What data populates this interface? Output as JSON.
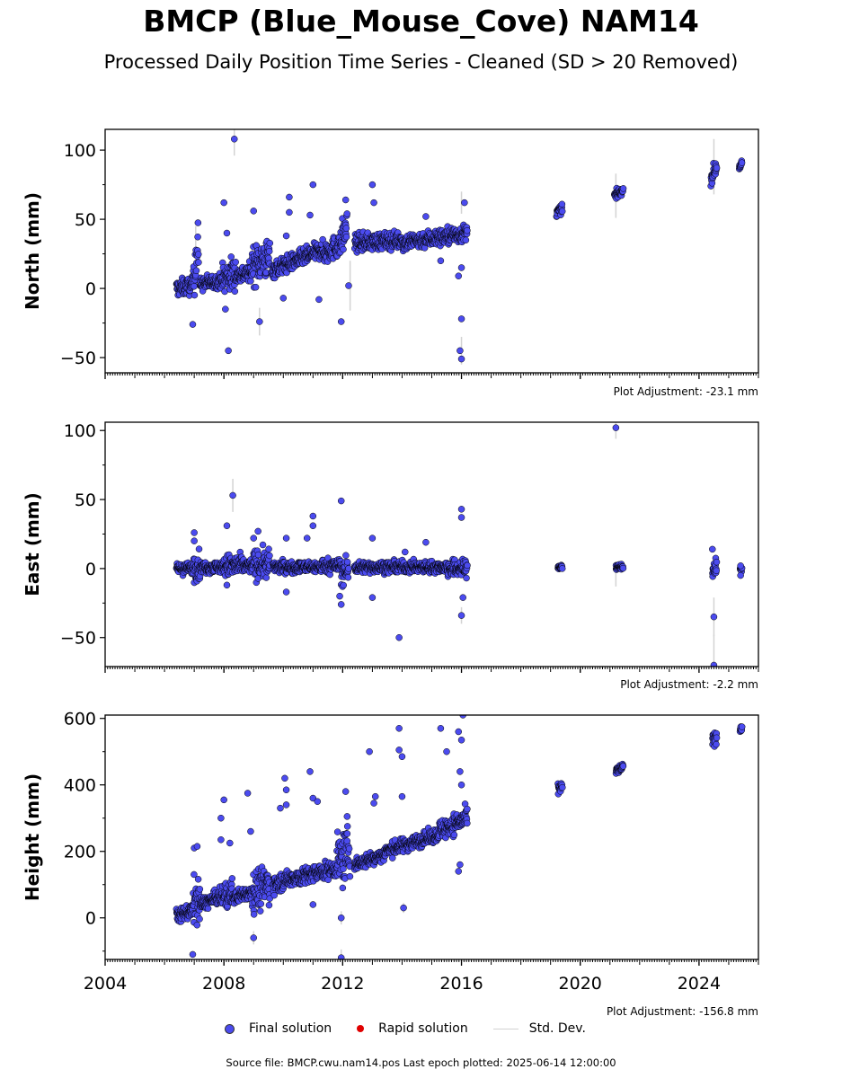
{
  "title": "BMCP (Blue_Mouse_Cove) NAM14",
  "subtitle": "Processed Daily Position Time Series - Cleaned (SD > 20 Removed)",
  "source_note": "Source file: BMCP.cwu.nam14.pos  Last epoch plotted: 2025-06-14 12:00:00",
  "legend": {
    "final": "Final solution",
    "rapid": "Rapid solution",
    "std": "Std. Dev."
  },
  "colors": {
    "final": "#4b4bef",
    "rapid": "#e00000",
    "std": "#d3d3d3",
    "edge": "#000000"
  },
  "chart_data": [
    {
      "type": "scatter",
      "ylabel": "North (mm)",
      "adjustment": "Plot Adjustment: -23.1 mm",
      "xlim": [
        2004,
        2026
      ],
      "ylim": [
        -61,
        115
      ],
      "yticks": [
        -50,
        0,
        50,
        100
      ],
      "ytick_labels": [
        "−50",
        "0",
        "50",
        "100"
      ],
      "xticks": [
        2004,
        2008,
        2012,
        2016,
        2020,
        2024
      ],
      "xtick_labels": [],
      "segments": [
        {
          "x0": 2006.4,
          "x1": 2006.95,
          "y0": 0,
          "y1": 2,
          "spread": 6
        },
        {
          "x0": 2006.95,
          "x1": 2007.15,
          "y0": 10,
          "y1": 30,
          "spread": 18
        },
        {
          "x0": 2007.2,
          "x1": 2007.95,
          "y0": 3,
          "y1": 6,
          "spread": 5
        },
        {
          "x0": 2007.95,
          "x1": 2008.4,
          "y0": 6,
          "y1": 12,
          "spread": 12
        },
        {
          "x0": 2008.4,
          "x1": 2008.95,
          "y0": 9,
          "y1": 12,
          "spread": 6
        },
        {
          "x0": 2008.95,
          "x1": 2009.55,
          "y0": 18,
          "y1": 22,
          "spread": 14
        },
        {
          "x0": 2009.6,
          "x1": 2010.4,
          "y0": 13,
          "y1": 20,
          "spread": 6
        },
        {
          "x0": 2010.4,
          "x1": 2011.3,
          "y0": 20,
          "y1": 28,
          "spread": 6
        },
        {
          "x0": 2011.3,
          "x1": 2011.95,
          "y0": 25,
          "y1": 32,
          "spread": 8
        },
        {
          "x0": 2011.95,
          "x1": 2012.15,
          "y0": 35,
          "y1": 45,
          "spread": 14
        },
        {
          "x0": 2012.4,
          "x1": 2014.0,
          "y0": 33,
          "y1": 35,
          "spread": 6
        },
        {
          "x0": 2014.0,
          "x1": 2016.2,
          "y0": 33,
          "y1": 40,
          "spread": 6
        },
        {
          "x0": 2019.2,
          "x1": 2019.4,
          "y0": 55,
          "y1": 58,
          "spread": 3
        },
        {
          "x0": 2021.15,
          "x1": 2021.45,
          "y0": 67,
          "y1": 71,
          "spread": 3
        },
        {
          "x0": 2024.4,
          "x1": 2024.6,
          "y0": 80,
          "y1": 88,
          "spread": 5
        },
        {
          "x0": 2025.35,
          "x1": 2025.45,
          "y0": 88,
          "y1": 90,
          "spread": 2
        }
      ],
      "outliers": [
        [
          2008.35,
          108
        ],
        [
          2008.0,
          62
        ],
        [
          2008.1,
          40
        ],
        [
          2009.0,
          56
        ],
        [
          2009.2,
          -24
        ],
        [
          2008.15,
          -45
        ],
        [
          2006.95,
          -26
        ],
        [
          2010.2,
          66
        ],
        [
          2010.2,
          55
        ],
        [
          2010.1,
          38
        ],
        [
          2010.0,
          -7
        ],
        [
          2011.0,
          75
        ],
        [
          2011.2,
          -8
        ],
        [
          2010.9,
          53
        ],
        [
          2011.95,
          -24
        ],
        [
          2012.2,
          2
        ],
        [
          2012.1,
          64
        ],
        [
          2013.0,
          75
        ],
        [
          2013.05,
          62
        ],
        [
          2016.0,
          -22
        ],
        [
          2015.95,
          -45
        ],
        [
          2016.0,
          -51
        ],
        [
          2016.0,
          15
        ],
        [
          2015.9,
          9
        ],
        [
          2014.8,
          52
        ],
        [
          2016.1,
          62
        ],
        [
          2015.3,
          20
        ],
        [
          2008.05,
          -15
        ]
      ],
      "stddev_bars": [
        [
          2008.35,
          108,
          12
        ],
        [
          2012.25,
          2,
          18
        ],
        [
          2016.0,
          -45,
          10
        ],
        [
          2024.5,
          88,
          20
        ],
        [
          2021.2,
          67,
          16
        ],
        [
          2009.2,
          -24,
          10
        ],
        [
          2016.0,
          62,
          8
        ],
        [
          2007.05,
          35,
          10
        ]
      ]
    },
    {
      "type": "scatter",
      "ylabel": "East (mm)",
      "adjustment": "Plot Adjustment: -2.2 mm",
      "xlim": [
        2004,
        2026
      ],
      "ylim": [
        -71,
        106
      ],
      "yticks": [
        -50,
        0,
        50,
        100
      ],
      "ytick_labels": [
        "−50",
        "0",
        "50",
        "100"
      ],
      "xticks": [
        2004,
        2008,
        2012,
        2016,
        2020,
        2024
      ],
      "xtick_labels": [],
      "segments": [
        {
          "x0": 2006.4,
          "x1": 2006.95,
          "y0": 0,
          "y1": 0,
          "spread": 4
        },
        {
          "x0": 2006.95,
          "x1": 2007.2,
          "y0": 2,
          "y1": 2,
          "spread": 10
        },
        {
          "x0": 2007.2,
          "x1": 2008.0,
          "y0": 1,
          "y1": 1,
          "spread": 4
        },
        {
          "x0": 2008.0,
          "x1": 2008.6,
          "y0": 2,
          "y1": 2,
          "spread": 8
        },
        {
          "x0": 2008.6,
          "x1": 2009.0,
          "y0": 2,
          "y1": 2,
          "spread": 5
        },
        {
          "x0": 2009.0,
          "x1": 2009.55,
          "y0": 3,
          "y1": 3,
          "spread": 10
        },
        {
          "x0": 2009.65,
          "x1": 2011.3,
          "y0": 1,
          "y1": 1,
          "spread": 4
        },
        {
          "x0": 2011.3,
          "x1": 2011.95,
          "y0": 2,
          "y1": 2,
          "spread": 5
        },
        {
          "x0": 2011.95,
          "x1": 2012.2,
          "y0": -2,
          "y1": -2,
          "spread": 10
        },
        {
          "x0": 2012.4,
          "x1": 2015.5,
          "y0": 1,
          "y1": 1,
          "spread": 4
        },
        {
          "x0": 2015.5,
          "x1": 2016.2,
          "y0": 0,
          "y1": 0,
          "spread": 6
        },
        {
          "x0": 2019.25,
          "x1": 2019.4,
          "y0": 1,
          "y1": 1,
          "spread": 2
        },
        {
          "x0": 2021.2,
          "x1": 2021.45,
          "y0": 1,
          "y1": 1,
          "spread": 3
        },
        {
          "x0": 2024.45,
          "x1": 2024.6,
          "y0": 0,
          "y1": 0,
          "spread": 6
        },
        {
          "x0": 2025.38,
          "x1": 2025.45,
          "y0": 0,
          "y1": 0,
          "spread": 3
        }
      ],
      "outliers": [
        [
          2008.3,
          53
        ],
        [
          2008.1,
          31
        ],
        [
          2007.0,
          26
        ],
        [
          2007.0,
          20
        ],
        [
          2009.15,
          27
        ],
        [
          2009.0,
          22
        ],
        [
          2011.95,
          49
        ],
        [
          2011.0,
          38
        ],
        [
          2011.0,
          31
        ],
        [
          2010.8,
          22
        ],
        [
          2010.1,
          22
        ],
        [
          2011.95,
          -26
        ],
        [
          2011.9,
          -20
        ],
        [
          2013.0,
          22
        ],
        [
          2013.0,
          -21
        ],
        [
          2013.9,
          -50
        ],
        [
          2014.1,
          12
        ],
        [
          2014.8,
          19
        ],
        [
          2016.0,
          43
        ],
        [
          2016.0,
          37
        ],
        [
          2016.0,
          -34
        ],
        [
          2016.05,
          -21
        ],
        [
          2021.2,
          102
        ],
        [
          2024.5,
          -35
        ],
        [
          2024.45,
          14
        ],
        [
          2024.5,
          -70
        ],
        [
          2025.4,
          -5
        ],
        [
          2025.4,
          2
        ],
        [
          2008.1,
          -12
        ],
        [
          2010.1,
          -17
        ]
      ],
      "stddev_bars": [
        [
          2008.3,
          53,
          12
        ],
        [
          2024.5,
          -35,
          14
        ],
        [
          2024.5,
          -60,
          12
        ],
        [
          2016.0,
          -34,
          6
        ],
        [
          2021.2,
          102,
          8
        ],
        [
          2021.2,
          -5,
          8
        ]
      ]
    },
    {
      "type": "scatter",
      "ylabel": "Height (mm)",
      "adjustment": "Plot Adjustment: -156.8 mm",
      "xlim": [
        2004,
        2026
      ],
      "ylim": [
        -125,
        610
      ],
      "yticks": [
        0,
        200,
        400,
        600
      ],
      "ytick_labels": [
        "0",
        "200",
        "400",
        "600"
      ],
      "xticks": [
        2004,
        2008,
        2012,
        2016,
        2020,
        2024
      ],
      "xtick_labels": [
        "2004",
        "2008",
        "2012",
        "2016",
        "2020",
        "2024"
      ],
      "segments": [
        {
          "x0": 2006.4,
          "x1": 2006.95,
          "y0": 5,
          "y1": 25,
          "spread": 20
        },
        {
          "x0": 2006.95,
          "x1": 2007.2,
          "y0": 40,
          "y1": 60,
          "spread": 70
        },
        {
          "x0": 2007.2,
          "x1": 2007.9,
          "y0": 40,
          "y1": 65,
          "spread": 20
        },
        {
          "x0": 2007.9,
          "x1": 2008.3,
          "y0": 60,
          "y1": 75,
          "spread": 40
        },
        {
          "x0": 2008.3,
          "x1": 2008.95,
          "y0": 60,
          "y1": 80,
          "spread": 20
        },
        {
          "x0": 2008.95,
          "x1": 2009.55,
          "y0": 80,
          "y1": 100,
          "spread": 60
        },
        {
          "x0": 2009.65,
          "x1": 2010.5,
          "y0": 100,
          "y1": 125,
          "spread": 25
        },
        {
          "x0": 2010.5,
          "x1": 2011.8,
          "y0": 120,
          "y1": 150,
          "spread": 25
        },
        {
          "x0": 2011.8,
          "x1": 2012.25,
          "y0": 170,
          "y1": 200,
          "spread": 70
        },
        {
          "x0": 2012.4,
          "x1": 2013.4,
          "y0": 160,
          "y1": 190,
          "spread": 20
        },
        {
          "x0": 2013.4,
          "x1": 2015.2,
          "y0": 200,
          "y1": 250,
          "spread": 20
        },
        {
          "x0": 2015.2,
          "x1": 2016.2,
          "y0": 260,
          "y1": 300,
          "spread": 30
        },
        {
          "x0": 2019.25,
          "x1": 2019.4,
          "y0": 385,
          "y1": 395,
          "spread": 15
        },
        {
          "x0": 2021.2,
          "x1": 2021.45,
          "y0": 440,
          "y1": 455,
          "spread": 12
        },
        {
          "x0": 2024.45,
          "x1": 2024.6,
          "y0": 530,
          "y1": 550,
          "spread": 20
        },
        {
          "x0": 2025.38,
          "x1": 2025.45,
          "y0": 565,
          "y1": 575,
          "spread": 10
        }
      ],
      "outliers": [
        [
          2006.95,
          -110
        ],
        [
          2007.0,
          210
        ],
        [
          2007.1,
          215
        ],
        [
          2007.9,
          235
        ],
        [
          2007.9,
          300
        ],
        [
          2008.0,
          355
        ],
        [
          2008.2,
          225
        ],
        [
          2008.8,
          375
        ],
        [
          2008.9,
          260
        ],
        [
          2009.0,
          -60
        ],
        [
          2009.9,
          330
        ],
        [
          2010.05,
          420
        ],
        [
          2010.1,
          385
        ],
        [
          2010.1,
          340
        ],
        [
          2010.9,
          440
        ],
        [
          2011.0,
          360
        ],
        [
          2011.15,
          350
        ],
        [
          2011.0,
          40
        ],
        [
          2011.95,
          0
        ],
        [
          2011.95,
          -120
        ],
        [
          2012.1,
          380
        ],
        [
          2012.15,
          305
        ],
        [
          2012.9,
          500
        ],
        [
          2013.1,
          365
        ],
        [
          2013.05,
          345
        ],
        [
          2013.9,
          570
        ],
        [
          2013.9,
          505
        ],
        [
          2014.0,
          485
        ],
        [
          2014.0,
          365
        ],
        [
          2014.05,
          30
        ],
        [
          2015.3,
          570
        ],
        [
          2015.5,
          500
        ],
        [
          2015.9,
          560
        ],
        [
          2016.05,
          610
        ],
        [
          2016.0,
          535
        ],
        [
          2015.95,
          440
        ],
        [
          2015.9,
          140
        ],
        [
          2015.95,
          160
        ],
        [
          2016.0,
          400
        ],
        [
          2012.0,
          90
        ]
      ],
      "stddev_bars": [
        [
          2011.95,
          0,
          20
        ],
        [
          2014.05,
          30,
          15
        ],
        [
          2011.95,
          -110,
          15
        ],
        [
          2009.0,
          -60,
          20
        ]
      ]
    }
  ]
}
